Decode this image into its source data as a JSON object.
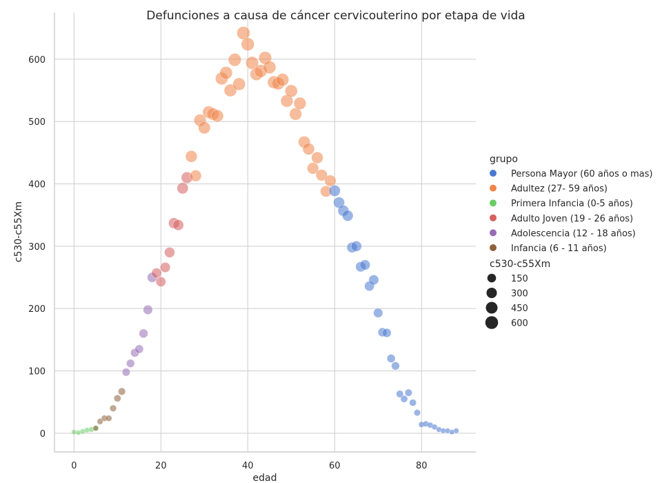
{
  "chart_data": {
    "type": "scatter",
    "title": "Defunciones a causa de cáncer cervicouterino por etapa de vida",
    "xlabel": "edad",
    "ylabel": "c530-c55Xm",
    "xlim": [
      -4.5,
      92.5
    ],
    "ylim": [
      -30,
      675
    ],
    "x_ticks": [
      0,
      20,
      40,
      60,
      80
    ],
    "y_ticks": [
      0,
      100,
      200,
      300,
      400,
      500,
      600
    ],
    "grid": true,
    "legend_position": "right",
    "hue_title": "grupo",
    "size_title": "c530-c55Xm",
    "size_legend_values": [
      150,
      300,
      450,
      600
    ],
    "groups": [
      {
        "name": "Persona Mayor (60 años o mas)",
        "color": "#4878d0"
      },
      {
        "name": "Adultez (27- 59 años)",
        "color": "#ee854a"
      },
      {
        "name": "Primera Infancia (0-5 años)",
        "color": "#6acc64"
      },
      {
        "name": "Adulto Joven (19 - 26 años)",
        "color": "#d65f5f"
      },
      {
        "name": "Adolescencia (12 - 18 años)",
        "color": "#956cb4"
      },
      {
        "name": "Infancia (6 - 11 años)",
        "color": "#8c613c"
      }
    ],
    "series": [
      {
        "name": "Primera Infancia (0-5 años)",
        "points": [
          [
            0,
            2
          ],
          [
            1,
            1
          ],
          [
            2,
            3
          ],
          [
            3,
            5
          ],
          [
            4,
            6
          ],
          [
            5,
            8
          ]
        ]
      },
      {
        "name": "Infancia (6 - 11 años)",
        "points": [
          [
            5,
            8
          ],
          [
            6,
            19
          ],
          [
            7,
            24
          ],
          [
            8,
            24
          ],
          [
            9,
            40
          ],
          [
            10,
            56
          ],
          [
            11,
            67
          ]
        ]
      },
      {
        "name": "Adolescencia (12 - 18 años)",
        "points": [
          [
            12,
            98
          ],
          [
            13,
            112
          ],
          [
            14,
            129
          ],
          [
            15,
            135
          ],
          [
            16,
            160
          ],
          [
            17,
            198
          ],
          [
            18,
            250
          ]
        ]
      },
      {
        "name": "Adulto Joven (19 - 26 años)",
        "points": [
          [
            19,
            257
          ],
          [
            20,
            243
          ],
          [
            21,
            266
          ],
          [
            22,
            290
          ],
          [
            23,
            337
          ],
          [
            24,
            334
          ],
          [
            25,
            393
          ],
          [
            26,
            410
          ]
        ]
      },
      {
        "name": "Adultez (27- 59 años)",
        "points": [
          [
            27,
            444
          ],
          [
            28,
            413
          ],
          [
            29,
            502
          ],
          [
            30,
            490
          ],
          [
            31,
            515
          ],
          [
            32,
            512
          ],
          [
            33,
            509
          ],
          [
            34,
            569
          ],
          [
            35,
            578
          ],
          [
            36,
            550
          ],
          [
            37,
            599
          ],
          [
            38,
            560
          ],
          [
            39,
            642
          ],
          [
            40,
            624
          ],
          [
            41,
            594
          ],
          [
            42,
            576
          ],
          [
            43,
            581
          ],
          [
            44,
            602
          ],
          [
            45,
            587
          ],
          [
            46,
            563
          ],
          [
            47,
            561
          ],
          [
            48,
            567
          ],
          [
            49,
            533
          ],
          [
            50,
            549
          ],
          [
            51,
            512
          ],
          [
            52,
            529
          ],
          [
            53,
            467
          ],
          [
            54,
            456
          ],
          [
            55,
            425
          ],
          [
            56,
            442
          ],
          [
            57,
            414
          ],
          [
            58,
            388
          ],
          [
            59,
            405
          ]
        ]
      },
      {
        "name": "Persona Mayor (60 años o mas)",
        "points": [
          [
            60,
            389
          ],
          [
            61,
            370
          ],
          [
            62,
            357
          ],
          [
            63,
            349
          ],
          [
            64,
            298
          ],
          [
            65,
            300
          ],
          [
            66,
            267
          ],
          [
            67,
            270
          ],
          [
            68,
            236
          ],
          [
            69,
            246
          ],
          [
            70,
            193
          ],
          [
            71,
            162
          ],
          [
            72,
            161
          ],
          [
            73,
            120
          ],
          [
            74,
            108
          ],
          [
            75,
            63
          ],
          [
            76,
            55
          ],
          [
            77,
            65
          ],
          [
            78,
            49
          ],
          [
            79,
            33
          ],
          [
            80,
            14
          ],
          [
            81,
            15
          ],
          [
            82,
            13
          ],
          [
            83,
            10
          ],
          [
            84,
            6
          ],
          [
            85,
            4
          ],
          [
            86,
            4
          ],
          [
            87,
            2
          ],
          [
            88,
            4
          ]
        ]
      }
    ]
  }
}
